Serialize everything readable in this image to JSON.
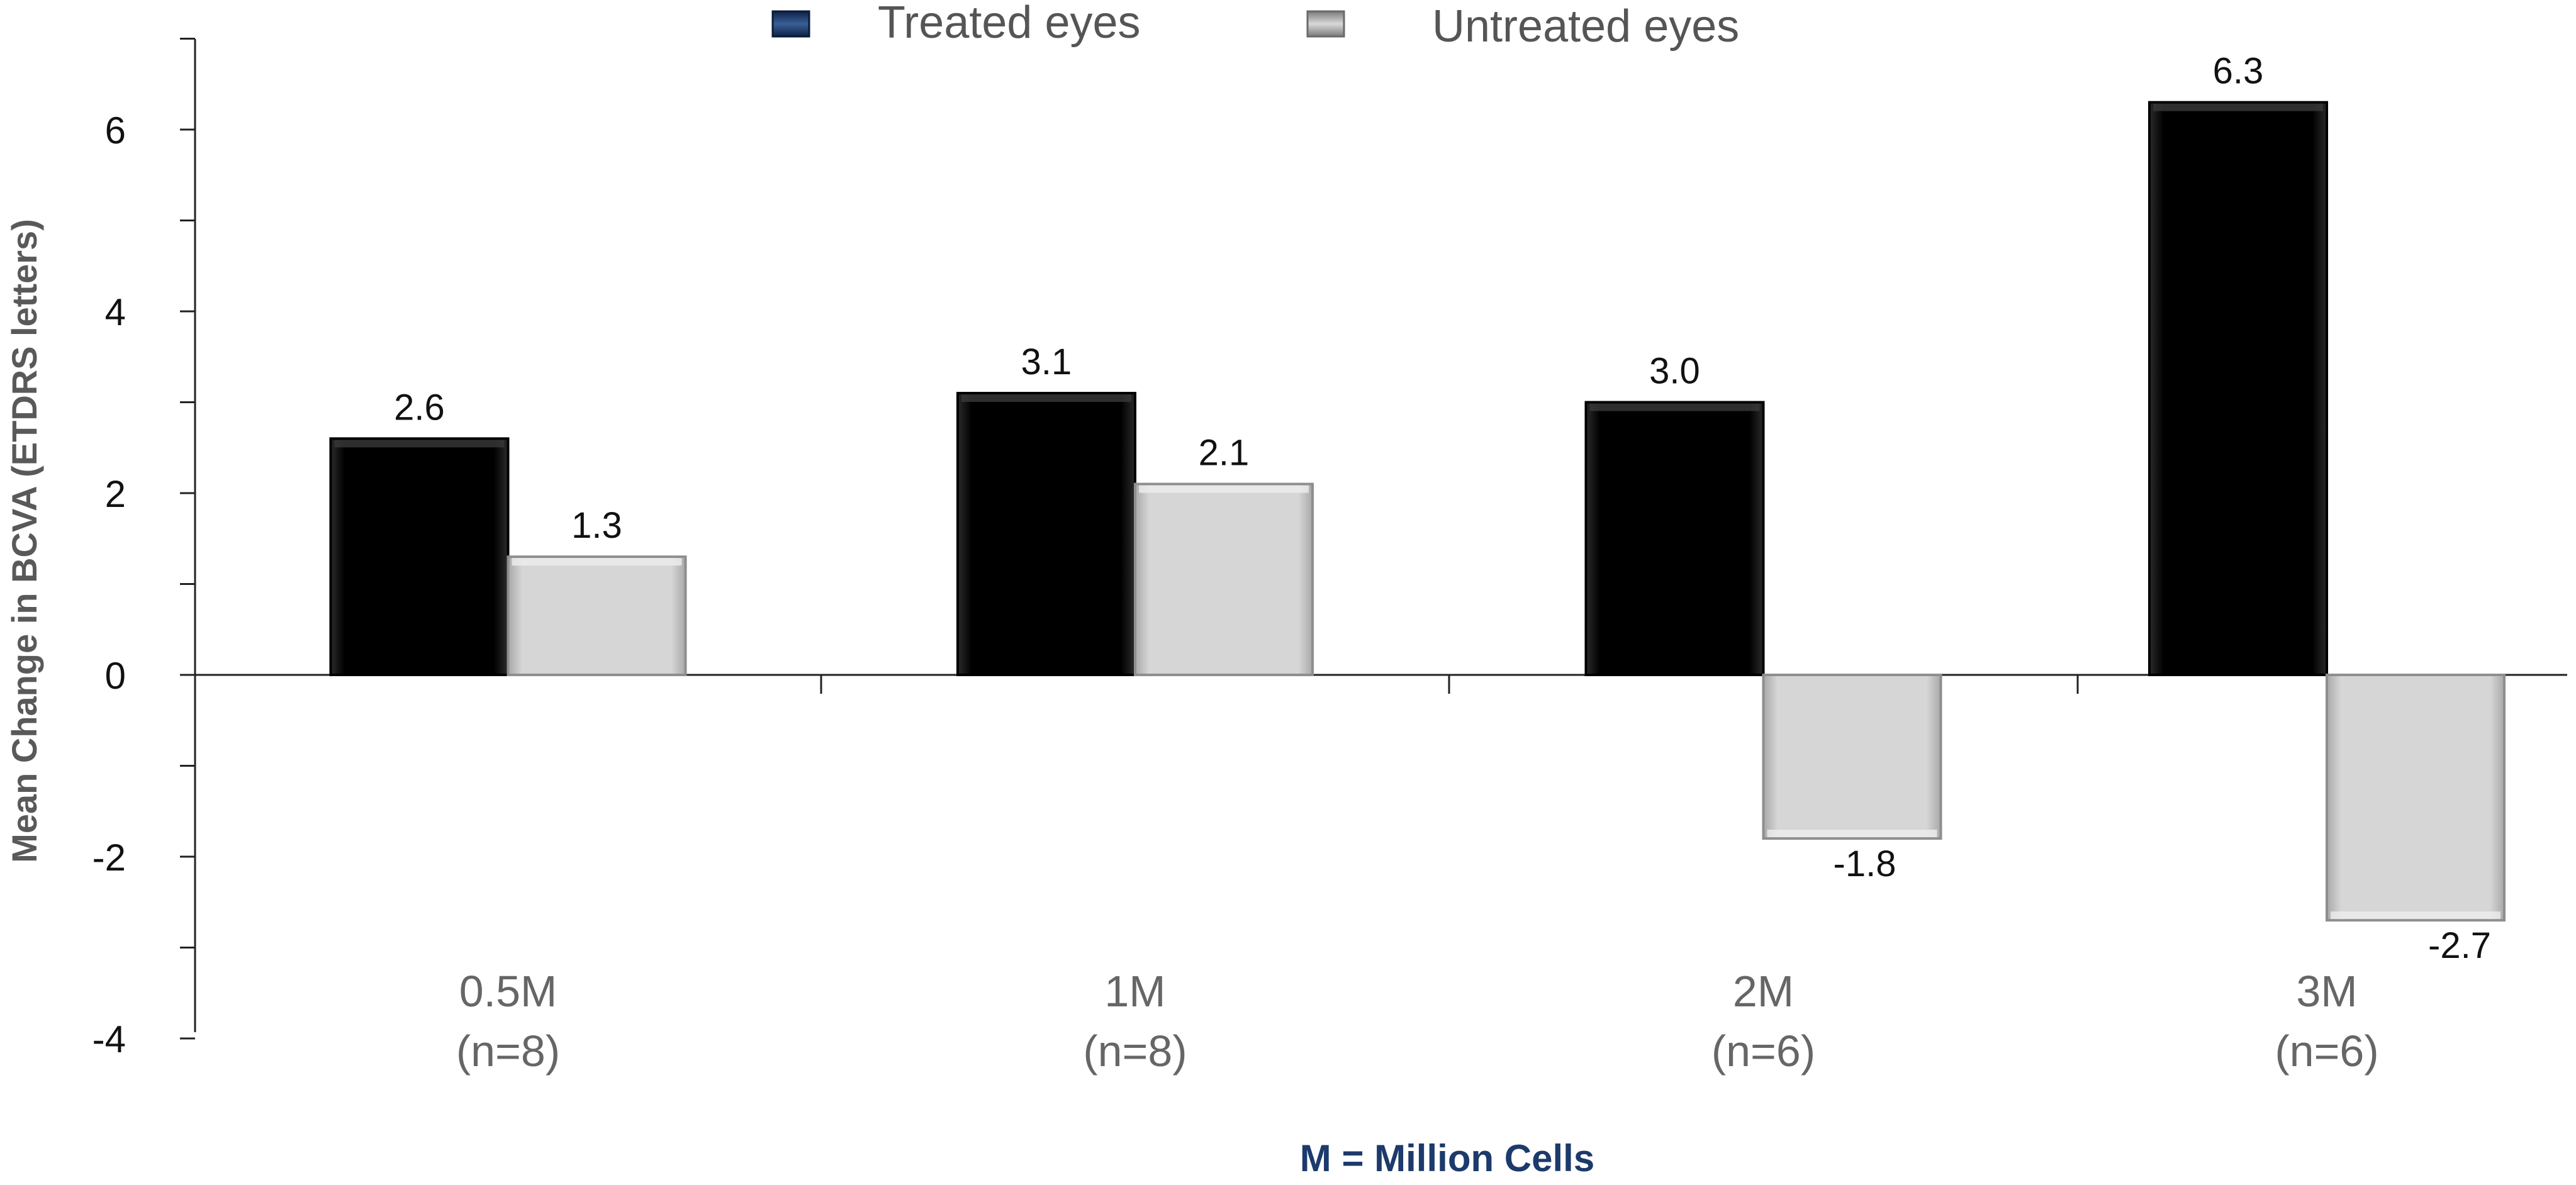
{
  "chart_data": {
    "type": "bar",
    "title": "",
    "xlabel": "M = Million Cells",
    "ylabel": "Mean Change in BCVA (ETDRS letters)",
    "ylim": [
      -4,
      7
    ],
    "y_ticks_labeled": [
      -4,
      -2,
      0,
      2,
      4,
      6
    ],
    "categories": [
      {
        "label": "0.5M",
        "n": "(n=8)"
      },
      {
        "label": "1M",
        "n": "(n=8)"
      },
      {
        "label": "2M",
        "n": "(n=6)"
      },
      {
        "label": "3M",
        "n": "(n=6)"
      }
    ],
    "series": [
      {
        "name": "Treated eyes",
        "color": "#0b0b0b",
        "legend_color": "#1c3a6b",
        "values": [
          2.6,
          3.1,
          3.0,
          6.3
        ],
        "labels": [
          "2.6",
          "3.1",
          "3.0",
          "6.3"
        ]
      },
      {
        "name": "Untreated eyes",
        "color": "#d3d3d3",
        "legend_color": "#9a9a9a",
        "values": [
          1.3,
          2.1,
          -1.8,
          -2.7
        ],
        "labels": [
          "1.3",
          "2.1",
          "-1.8",
          "-2.7"
        ]
      }
    ],
    "legend_position": "top-center",
    "grid": false
  },
  "colors": {
    "axis": "#222222",
    "tick_text": "#111111",
    "category_text": "#666666",
    "note_text": "#1c3a6b",
    "ylabel_text": "#595959"
  }
}
